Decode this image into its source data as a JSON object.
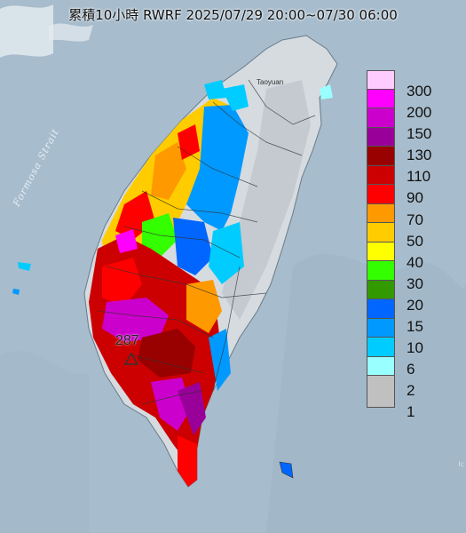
{
  "title": "累積10小時 RWRF 2025/07/29 20:00~07/30 06:00",
  "map_labels": {
    "strait": "Formosa Strait",
    "city": "Taoyuan",
    "edge_mark": "Ic"
  },
  "max_marker": {
    "value": "287",
    "icon": "triangle-icon"
  },
  "legend": {
    "unit_labels": [
      "300",
      "200",
      "150",
      "130",
      "110",
      "90",
      "70",
      "50",
      "40",
      "30",
      "20",
      "15",
      "10",
      "6",
      "2",
      "1"
    ],
    "colors": [
      "#ffccff",
      "#ff00ff",
      "#cc00cc",
      "#990099",
      "#990000",
      "#cc0000",
      "#ff0000",
      "#ff9900",
      "#ffcc00",
      "#ffff00",
      "#33ff00",
      "#339900",
      "#0066ff",
      "#0099ff",
      "#00ccff",
      "#99ffff",
      "#c0c0c0"
    ]
  },
  "colors": {
    "sea": "#a9bccb",
    "land": "#d8dde2",
    "no_rain": "#c0c0c0"
  }
}
